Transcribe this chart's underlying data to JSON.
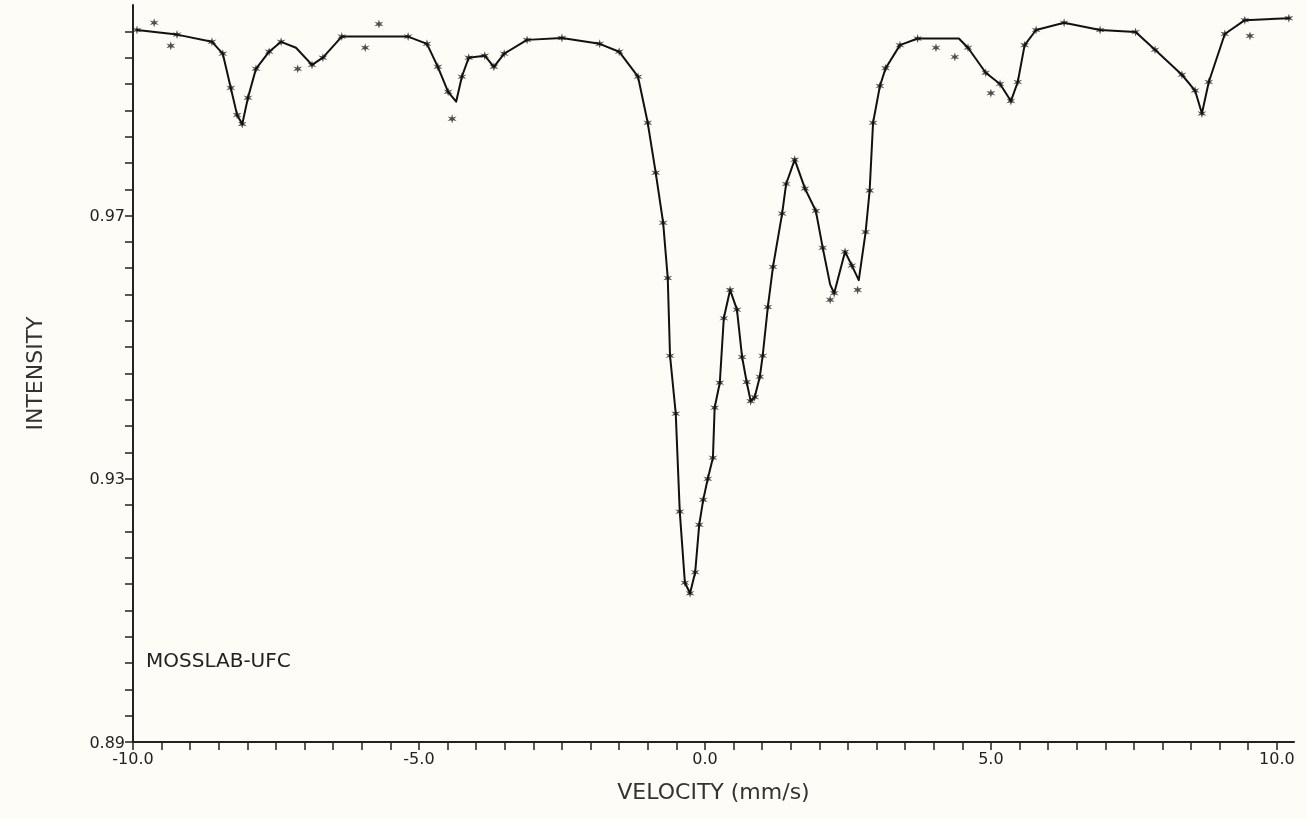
{
  "chart_data": {
    "type": "scatter",
    "xlabel": "VELOCITY (mm/s)",
    "ylabel": "INTENSITY",
    "annotations": [
      "MOSSLAB-UFC"
    ],
    "xlim": [
      -10,
      10.3
    ],
    "ylim": [
      0.89,
      1.002
    ],
    "xticks": [
      {
        "value": -10,
        "label": "-10.0"
      },
      {
        "value": -9.5,
        "label": null
      },
      {
        "value": -9,
        "label": null
      },
      {
        "value": -8.5,
        "label": null
      },
      {
        "value": -8,
        "label": null
      },
      {
        "value": -7.5,
        "label": null
      },
      {
        "value": -7,
        "label": null
      },
      {
        "value": -6.5,
        "label": null
      },
      {
        "value": -6,
        "label": null
      },
      {
        "value": -5.5,
        "label": null
      },
      {
        "value": -5,
        "label": "-5.0"
      },
      {
        "value": -4.5,
        "label": null
      },
      {
        "value": -4,
        "label": null
      },
      {
        "value": -3.5,
        "label": null
      },
      {
        "value": -3,
        "label": null
      },
      {
        "value": -2.5,
        "label": null
      },
      {
        "value": -2,
        "label": null
      },
      {
        "value": -1.5,
        "label": null
      },
      {
        "value": -1,
        "label": null
      },
      {
        "value": -0.5,
        "label": null
      },
      {
        "value": 0,
        "label": "0.0"
      },
      {
        "value": 0.5,
        "label": null
      },
      {
        "value": 1,
        "label": null
      },
      {
        "value": 1.5,
        "label": null
      },
      {
        "value": 2,
        "label": null
      },
      {
        "value": 2.5,
        "label": null
      },
      {
        "value": 3,
        "label": null
      },
      {
        "value": 3.5,
        "label": null
      },
      {
        "value": 4,
        "label": null
      },
      {
        "value": 4.5,
        "label": null
      },
      {
        "value": 5,
        "label": "5.0"
      },
      {
        "value": 5.5,
        "label": null
      },
      {
        "value": 6,
        "label": null
      },
      {
        "value": 6.5,
        "label": null
      },
      {
        "value": 7,
        "label": null
      },
      {
        "value": 7.5,
        "label": null
      },
      {
        "value": 8,
        "label": null
      },
      {
        "value": 8.5,
        "label": null
      },
      {
        "value": 9,
        "label": null
      },
      {
        "value": 9.5,
        "label": null
      },
      {
        "value": 10,
        "label": "10.0"
      }
    ],
    "yticks": [
      0.89,
      {
        "value": 0.894,
        "label": null
      },
      {
        "value": 0.898,
        "label": null
      },
      {
        "value": 0.902,
        "label": null
      },
      {
        "value": 0.906,
        "label": null
      },
      {
        "value": 0.91,
        "label": null
      },
      {
        "value": 0.914,
        "label": null
      },
      {
        "value": 0.918,
        "label": null
      },
      {
        "value": 0.922,
        "label": null
      },
      {
        "value": 0.926,
        "label": null
      },
      0.93,
      {
        "value": 0.934,
        "label": null
      },
      {
        "value": 0.938,
        "label": null
      },
      {
        "value": 0.942,
        "label": null
      },
      {
        "value": 0.946,
        "label": null
      },
      {
        "value": 0.95,
        "label": null
      },
      {
        "value": 0.954,
        "label": null
      },
      {
        "value": 0.958,
        "label": null
      },
      {
        "value": 0.962,
        "label": null
      },
      {
        "value": 0.966,
        "label": null
      },
      0.97,
      {
        "value": 0.974,
        "label": null
      },
      {
        "value": 0.978,
        "label": null
      },
      {
        "value": 0.982,
        "label": null
      },
      {
        "value": 0.986,
        "label": null
      },
      {
        "value": 0.99,
        "label": null
      },
      {
        "value": 0.994,
        "label": null
      },
      {
        "value": 0.998,
        "label": null
      }
    ],
    "grid": false,
    "series": [
      {
        "type": "scatter",
        "marker": "cross",
        "color": "#222222",
        "x": [
          -9.93,
          -9.63,
          -9.34,
          -9.23,
          -8.62,
          -8.43,
          -8.29,
          -8.18,
          -8.09,
          -7.99,
          -7.85,
          -7.62,
          -7.41,
          -7.12,
          -6.87,
          -6.68,
          -6.35,
          -5.94,
          -5.7,
          -5.19,
          -4.86,
          -4.67,
          -4.49,
          -4.42,
          -4.25,
          -4.13,
          -3.85,
          -3.69,
          -3.51,
          -3.11,
          -2.5,
          -1.84,
          -1.5,
          -1.17,
          -1.0,
          -0.86,
          -0.73,
          -0.65,
          -0.61,
          -0.51,
          -0.44,
          -0.35,
          -0.26,
          -0.17,
          -0.1,
          -0.03,
          0.05,
          0.14,
          0.17,
          0.26,
          0.33,
          0.44,
          0.56,
          0.65,
          0.73,
          0.8,
          0.87,
          0.96,
          1.01,
          1.1,
          1.19,
          1.35,
          1.42,
          1.57,
          1.75,
          1.94,
          2.06,
          2.19,
          2.26,
          2.45,
          2.57,
          2.67,
          2.81,
          2.88,
          2.94,
          3.06,
          3.16,
          3.41,
          3.72,
          4.04,
          4.37,
          4.6,
          4.91,
          5.0,
          5.16,
          5.35,
          5.47,
          5.59,
          5.79,
          6.28,
          6.91,
          7.53,
          7.87,
          8.34,
          8.57,
          8.69,
          8.81,
          9.09,
          9.44,
          9.53,
          10.21
        ],
        "values": [
          0.9982,
          0.9993,
          0.9958,
          0.9975,
          0.9964,
          0.9946,
          0.9894,
          0.9853,
          0.9839,
          0.9879,
          0.9923,
          0.9949,
          0.9964,
          0.9923,
          0.9929,
          0.994,
          0.9972,
          0.9955,
          0.9991,
          0.9972,
          0.9961,
          0.9926,
          0.9888,
          0.9847,
          0.9911,
          0.994,
          0.9943,
          0.9926,
          0.9946,
          0.9967,
          0.997,
          0.9961,
          0.9949,
          0.9911,
          0.9841,
          0.9765,
          0.9689,
          0.9605,
          0.9487,
          0.9399,
          0.925,
          0.9142,
          0.9126,
          0.9158,
          0.923,
          0.9268,
          0.93,
          0.9332,
          0.9408,
          0.9446,
          0.9544,
          0.9587,
          0.9557,
          0.9485,
          0.9447,
          0.9418,
          0.9424,
          0.9455,
          0.9487,
          0.9561,
          0.9622,
          0.9703,
          0.9748,
          0.9785,
          0.9741,
          0.9707,
          0.9651,
          0.9572,
          0.9582,
          0.9645,
          0.9624,
          0.9587,
          0.9675,
          0.9738,
          0.9841,
          0.9897,
          0.9924,
          0.9959,
          0.9969,
          0.9955,
          0.9941,
          0.9955,
          0.9917,
          0.9886,
          0.99,
          0.9874,
          0.9903,
          0.9959,
          0.9982,
          0.9993,
          0.9982,
          0.9979,
          0.9952,
          0.9914,
          0.989,
          0.9855,
          0.9903,
          0.9976,
          0.9997,
          0.9973,
          1.0
        ]
      },
      {
        "type": "line",
        "marker": "none",
        "line_style": "solid",
        "color": "#111111",
        "x": [
          -9.93,
          -9.23,
          -8.62,
          -8.43,
          -8.29,
          -8.18,
          -8.09,
          -7.99,
          -7.85,
          -7.62,
          -7.41,
          -7.15,
          -6.87,
          -6.68,
          -6.35,
          -5.87,
          -5.19,
          -4.86,
          -4.67,
          -4.49,
          -4.35,
          -4.25,
          -4.13,
          -3.85,
          -3.69,
          -3.51,
          -3.11,
          -2.5,
          -1.84,
          -1.5,
          -1.17,
          -1.0,
          -0.86,
          -0.73,
          -0.65,
          -0.61,
          -0.51,
          -0.44,
          -0.35,
          -0.26,
          -0.17,
          -0.1,
          -0.03,
          0.05,
          0.14,
          0.17,
          0.26,
          0.33,
          0.44,
          0.56,
          0.65,
          0.73,
          0.8,
          0.87,
          0.96,
          1.01,
          1.1,
          1.19,
          1.35,
          1.42,
          1.57,
          1.75,
          1.94,
          2.06,
          2.19,
          2.26,
          2.45,
          2.57,
          2.69,
          2.81,
          2.88,
          2.94,
          3.06,
          3.16,
          3.41,
          3.72,
          4.44,
          4.6,
          4.91,
          5.16,
          5.35,
          5.47,
          5.59,
          5.79,
          6.28,
          6.91,
          7.53,
          7.87,
          8.34,
          8.57,
          8.69,
          8.81,
          9.09,
          9.44,
          10.21
        ],
        "values": [
          0.9982,
          0.9975,
          0.9964,
          0.9946,
          0.9894,
          0.9853,
          0.9839,
          0.9879,
          0.9923,
          0.9949,
          0.9964,
          0.9955,
          0.9929,
          0.994,
          0.9972,
          0.9972,
          0.9972,
          0.9961,
          0.9926,
          0.9888,
          0.9873,
          0.9911,
          0.994,
          0.9943,
          0.9926,
          0.9946,
          0.9967,
          0.997,
          0.9961,
          0.9949,
          0.9911,
          0.9841,
          0.9765,
          0.9689,
          0.9605,
          0.9487,
          0.9399,
          0.925,
          0.9142,
          0.9126,
          0.9158,
          0.923,
          0.9268,
          0.93,
          0.9332,
          0.9408,
          0.9446,
          0.9544,
          0.9587,
          0.9557,
          0.9485,
          0.9447,
          0.9418,
          0.9424,
          0.9455,
          0.9487,
          0.9561,
          0.9622,
          0.9703,
          0.9748,
          0.9785,
          0.9741,
          0.9707,
          0.9651,
          0.9595,
          0.9582,
          0.9645,
          0.9624,
          0.9602,
          0.9675,
          0.9738,
          0.9841,
          0.9897,
          0.9924,
          0.9959,
          0.9969,
          0.9969,
          0.9955,
          0.9917,
          0.99,
          0.9874,
          0.9903,
          0.9959,
          0.9982,
          0.9993,
          0.9982,
          0.9979,
          0.9952,
          0.9914,
          0.989,
          0.9855,
          0.9903,
          0.9976,
          0.9997,
          1.0
        ]
      }
    ]
  }
}
